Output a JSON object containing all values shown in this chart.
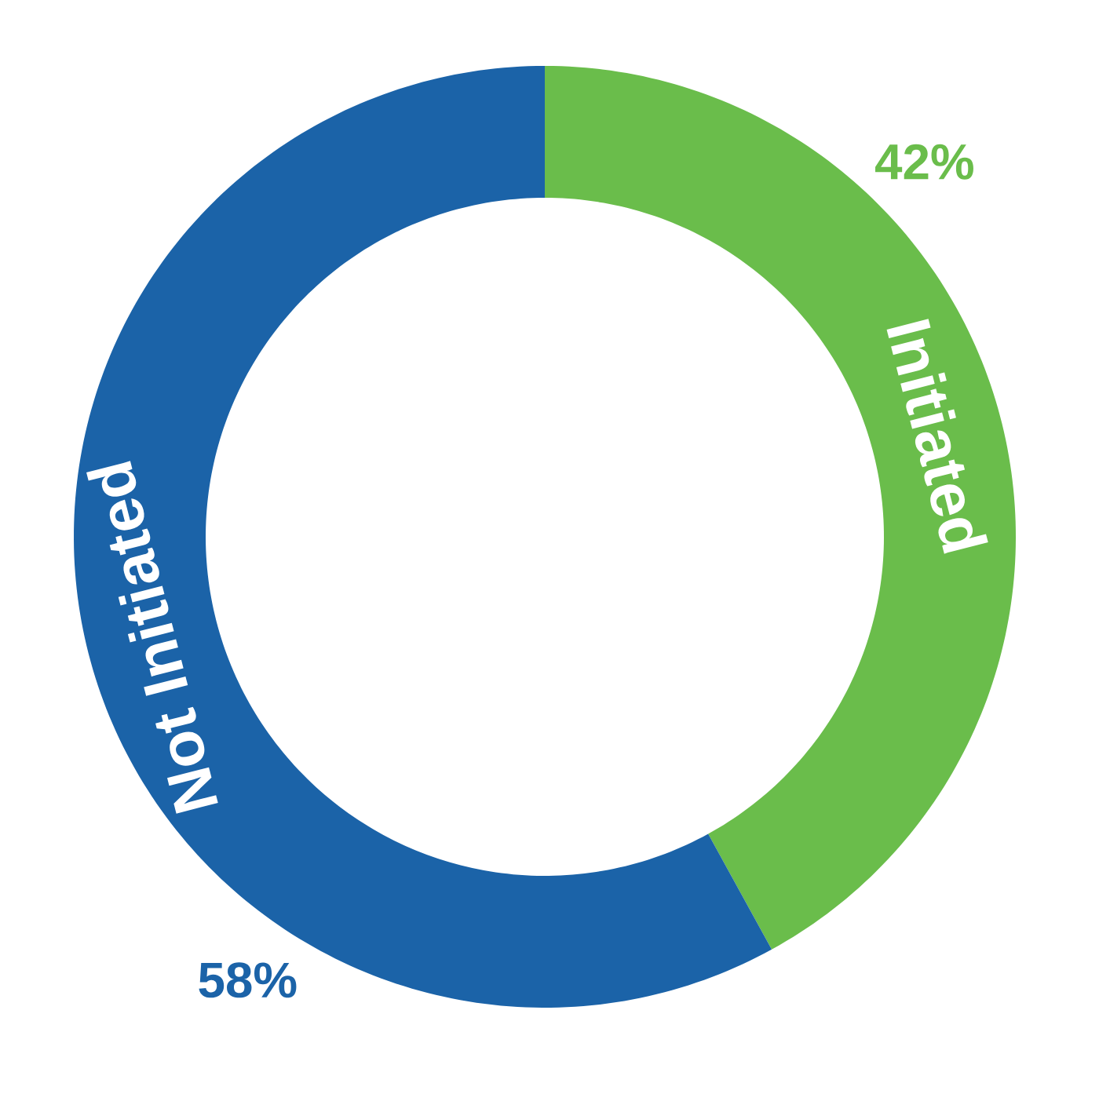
{
  "chart_data": {
    "type": "donut",
    "categories": [
      "Initiated",
      "Not Initiated"
    ],
    "values": [
      42,
      58
    ],
    "colors": [
      "#6abd4b",
      "#1b63a8"
    ],
    "value_labels": [
      "42%",
      "58%"
    ]
  }
}
